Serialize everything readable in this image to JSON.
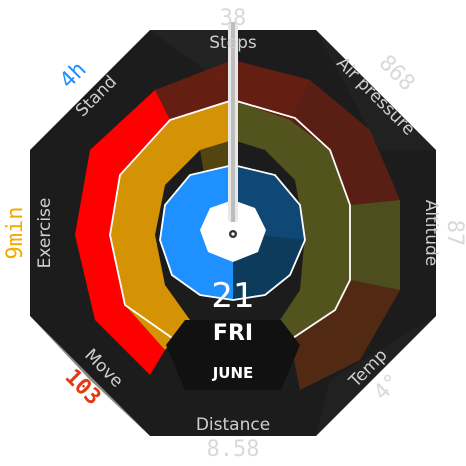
{
  "colors": {
    "background": "#ffffff",
    "bezel": "#1c1c1c",
    "move": "#ff0000",
    "exercise": "#f5a800",
    "stand": "#1e90ff",
    "steps": "#6e1f12",
    "air_pressure": "#6e1f12",
    "altitude": "#5a5a1e",
    "temp": "#5c2d12"
  },
  "complications": {
    "steps": {
      "label": "Steps",
      "value": "38"
    },
    "air_pressure": {
      "label": "Air pressure",
      "value": "868"
    },
    "altitude": {
      "label": "Altitude",
      "value": "87"
    },
    "temp": {
      "label": "Temp",
      "value": "4°"
    },
    "distance": {
      "label": "Distance",
      "value": "8.58"
    },
    "move": {
      "label": "Move",
      "value": "103"
    },
    "exercise": {
      "label": "Exercise",
      "value": "9min"
    },
    "stand": {
      "label": "Stand",
      "value": "4h"
    }
  },
  "date": {
    "day": "21",
    "weekday": "FRI",
    "month": "JUNE"
  },
  "rings": {
    "move_fraction": 0.35,
    "exercise_fraction": 0.37,
    "stand_fraction": 0.5
  }
}
